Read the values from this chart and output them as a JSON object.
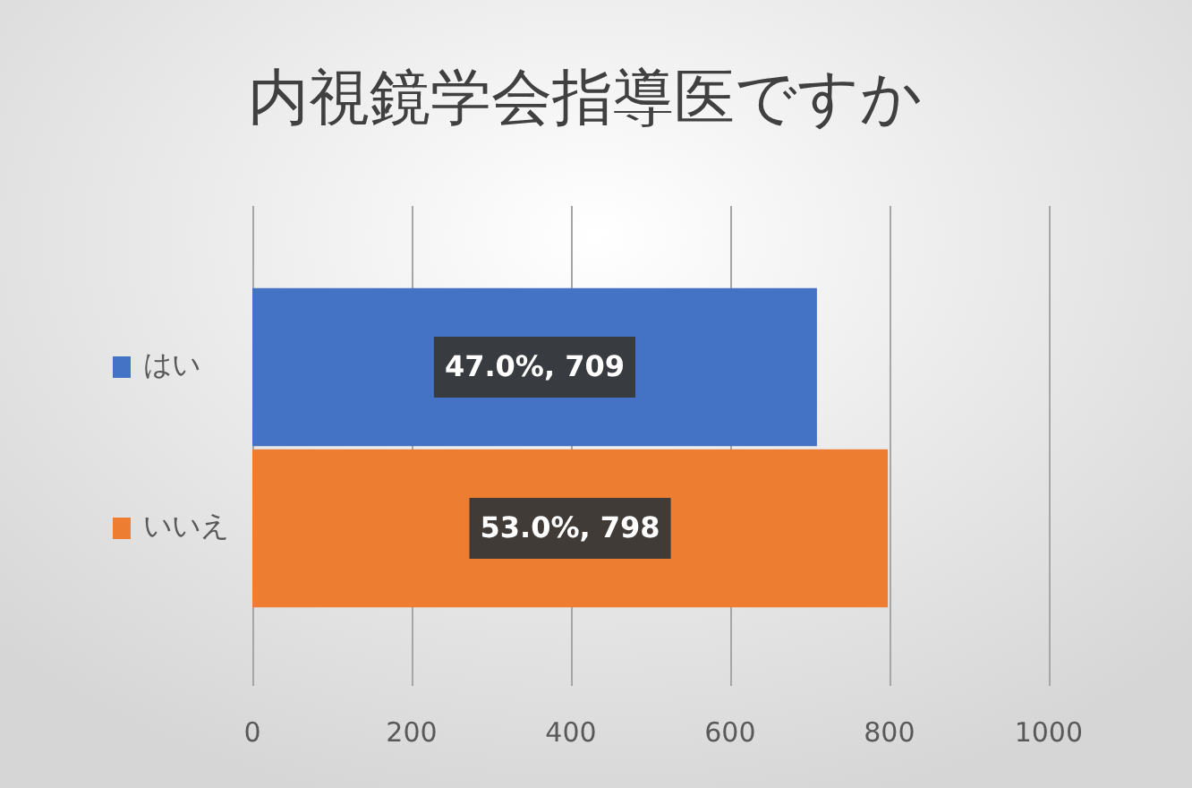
{
  "chart_data": {
    "type": "bar",
    "orientation": "horizontal",
    "title": "内視鏡学会指導医ですか",
    "categories": [
      "はい",
      "いいえ"
    ],
    "values": [
      709,
      798
    ],
    "colors": [
      "#4472c4",
      "#ed7d31"
    ],
    "value_labels": [
      "47.0%, 709",
      "53.0%, 798"
    ],
    "xlim": [
      0,
      1000
    ],
    "xticks": [
      0,
      200,
      400,
      600,
      800,
      1000
    ],
    "grid": "x"
  }
}
